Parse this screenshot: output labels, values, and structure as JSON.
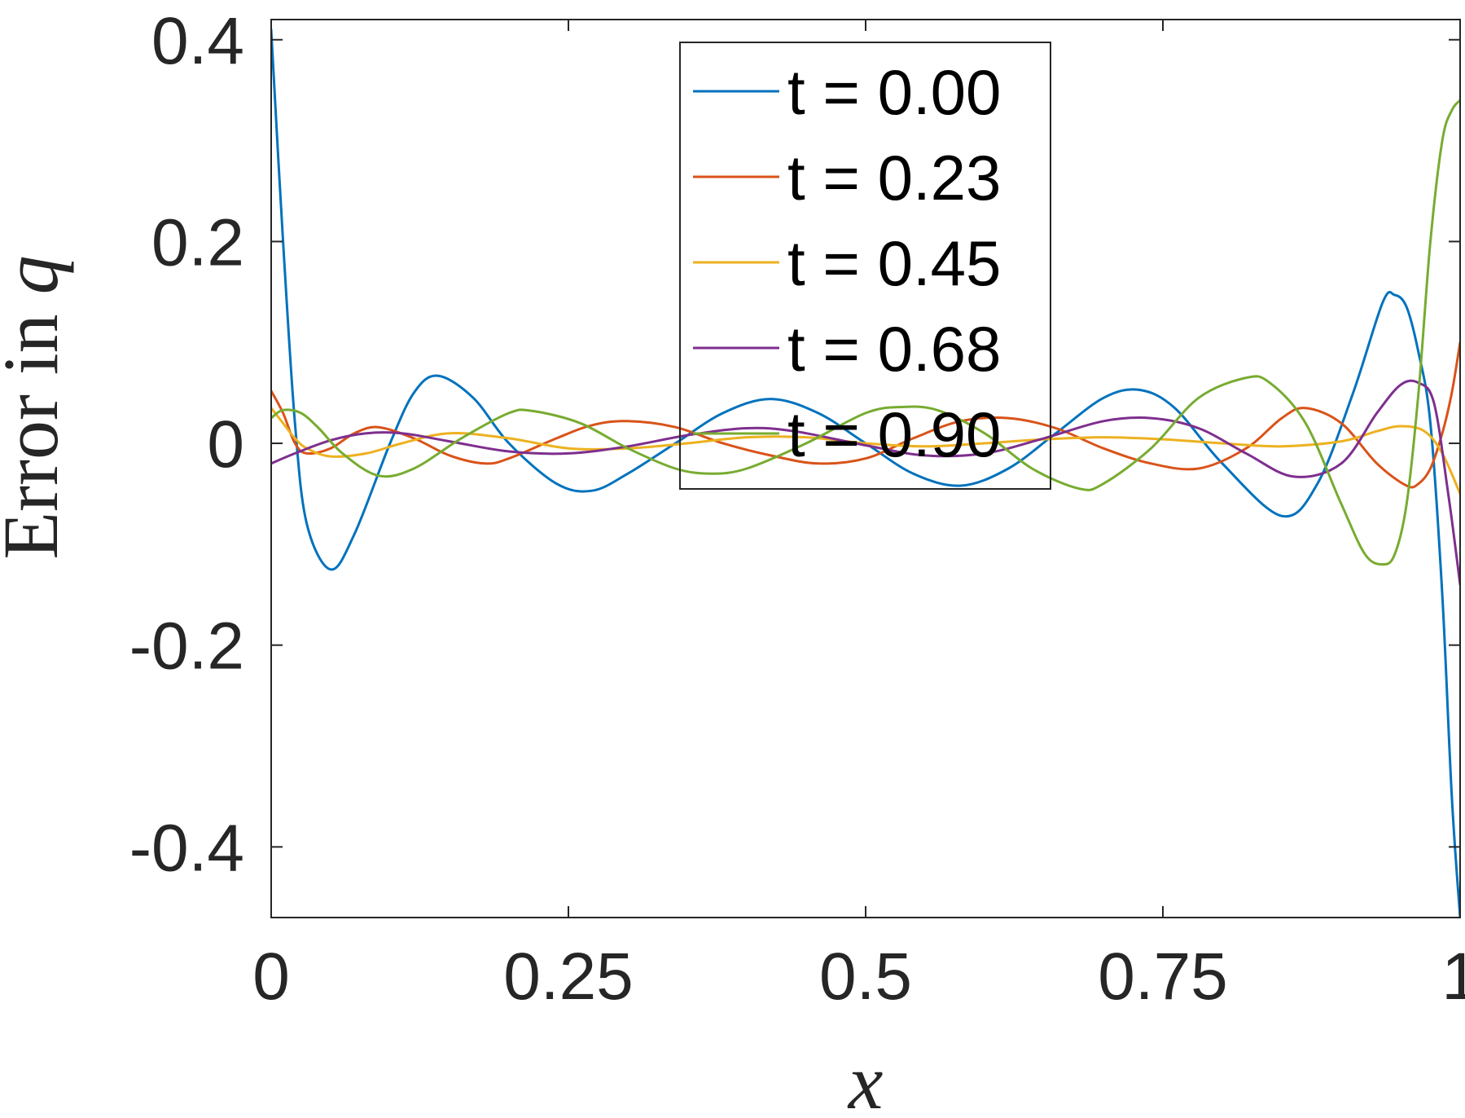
{
  "chart_data": {
    "type": "line",
    "title": "",
    "xlabel": "x",
    "ylabel": "Error in q",
    "ylabel_parts": {
      "prefix": "Error in ",
      "variable": "q"
    },
    "xlim": [
      0,
      1
    ],
    "ylim": [
      -0.47,
      0.42
    ],
    "xticks": [
      0,
      0.25,
      0.5,
      0.75,
      1
    ],
    "xtick_labels": [
      "0",
      "0.25",
      "0.5",
      "0.75",
      "1"
    ],
    "yticks": [
      -0.4,
      -0.2,
      0,
      0.2,
      0.4
    ],
    "ytick_labels": [
      "-0.4",
      "-0.2",
      "0",
      "0.2",
      "0.4"
    ],
    "grid": false,
    "legend_position": "top-center",
    "series": [
      {
        "name": "t = 0.00",
        "color": "#0072BD",
        "x": [
          0,
          0.01,
          0.02,
          0.03,
          0.05,
          0.07,
          0.1,
          0.12,
          0.14,
          0.17,
          0.2,
          0.24,
          0.27,
          0.3,
          0.34,
          0.38,
          0.42,
          0.46,
          0.5,
          0.54,
          0.58,
          0.62,
          0.66,
          0.7,
          0.73,
          0.76,
          0.8,
          0.85,
          0.88,
          0.91,
          0.935,
          0.945,
          0.955,
          0.965,
          0.975,
          0.985,
          0.993,
          1.0
        ],
        "y": [
          0.41,
          0.2,
          0.02,
          -0.08,
          -0.125,
          -0.09,
          0.0,
          0.05,
          0.067,
          0.045,
          0.0,
          -0.04,
          -0.047,
          -0.03,
          0.0,
          0.03,
          0.044,
          0.03,
          0.0,
          -0.03,
          -0.042,
          -0.025,
          0.01,
          0.045,
          0.053,
          0.035,
          -0.02,
          -0.072,
          -0.04,
          0.05,
          0.14,
          0.147,
          0.135,
          0.09,
          0.02,
          -0.15,
          -0.35,
          -0.47
        ]
      },
      {
        "name": "t = 0.23",
        "color": "#D95319",
        "x": [
          0,
          0.01,
          0.02,
          0.03,
          0.05,
          0.07,
          0.09,
          0.12,
          0.15,
          0.18,
          0.2,
          0.24,
          0.27,
          0.3,
          0.34,
          0.38,
          0.42,
          0.46,
          0.5,
          0.54,
          0.58,
          0.62,
          0.66,
          0.7,
          0.74,
          0.78,
          0.82,
          0.85,
          0.87,
          0.9,
          0.93,
          0.955,
          0.965,
          0.975,
          0.985,
          0.993,
          1.0
        ],
        "y": [
          0.052,
          0.03,
          0.0,
          -0.01,
          -0.005,
          0.01,
          0.016,
          0.005,
          -0.012,
          -0.02,
          -0.015,
          0.005,
          0.018,
          0.022,
          0.016,
          0.0,
          -0.012,
          -0.02,
          -0.015,
          0.005,
          0.022,
          0.025,
          0.015,
          -0.005,
          -0.02,
          -0.025,
          -0.005,
          0.025,
          0.035,
          0.02,
          -0.02,
          -0.042,
          -0.04,
          -0.025,
          0.01,
          0.05,
          0.1
        ]
      },
      {
        "name": "t = 0.45",
        "color": "#EDB120",
        "x": [
          0,
          0.01,
          0.02,
          0.03,
          0.05,
          0.08,
          0.11,
          0.15,
          0.2,
          0.25,
          0.3,
          0.35,
          0.4,
          0.45,
          0.5,
          0.55,
          0.6,
          0.65,
          0.7,
          0.75,
          0.8,
          0.85,
          0.9,
          0.93,
          0.95,
          0.97,
          0.985,
          1.0
        ],
        "y": [
          0.035,
          0.02,
          0.005,
          -0.005,
          -0.013,
          -0.01,
          0.0,
          0.01,
          0.005,
          -0.005,
          -0.005,
          0.0,
          0.006,
          0.006,
          0.0,
          -0.003,
          0.0,
          0.004,
          0.006,
          0.004,
          0.0,
          -0.003,
          0.002,
          0.012,
          0.017,
          0.012,
          -0.01,
          -0.05
        ]
      },
      {
        "name": "t = 0.68",
        "color": "#7E2F8E",
        "x": [
          0,
          0.02,
          0.05,
          0.08,
          0.11,
          0.15,
          0.2,
          0.25,
          0.3,
          0.35,
          0.4,
          0.44,
          0.5,
          0.55,
          0.6,
          0.65,
          0.7,
          0.74,
          0.78,
          0.82,
          0.86,
          0.9,
          0.93,
          0.95,
          0.965,
          0.978,
          0.99,
          1.0
        ],
        "y": [
          -0.02,
          -0.01,
          0.003,
          0.01,
          0.01,
          0.002,
          -0.008,
          -0.01,
          -0.003,
          0.008,
          0.015,
          0.012,
          -0.002,
          -0.012,
          -0.01,
          0.005,
          0.022,
          0.025,
          0.015,
          -0.01,
          -0.033,
          -0.02,
          0.03,
          0.058,
          0.06,
          0.04,
          -0.05,
          -0.14
        ]
      },
      {
        "name": "t = 0.90",
        "color": "#77AC30",
        "x": [
          0,
          0.01,
          0.025,
          0.04,
          0.06,
          0.09,
          0.12,
          0.16,
          0.2,
          0.22,
          0.26,
          0.3,
          0.34,
          0.37,
          0.4,
          0.45,
          0.5,
          0.53,
          0.56,
          0.6,
          0.64,
          0.68,
          0.7,
          0.74,
          0.78,
          0.82,
          0.84,
          0.87,
          0.9,
          0.92,
          0.935,
          0.945,
          0.955,
          0.965,
          0.975,
          0.985,
          0.993,
          1.0
        ],
        "y": [
          0.025,
          0.033,
          0.03,
          0.015,
          -0.01,
          -0.032,
          -0.025,
          0.005,
          0.03,
          0.032,
          0.02,
          -0.005,
          -0.025,
          -0.03,
          -0.025,
          0.0,
          0.03,
          0.036,
          0.033,
          0.01,
          -0.025,
          -0.045,
          -0.04,
          -0.005,
          0.045,
          0.065,
          0.06,
          0.02,
          -0.06,
          -0.11,
          -0.12,
          -0.11,
          -0.06,
          0.05,
          0.2,
          0.3,
          0.33,
          0.34
        ]
      }
    ]
  }
}
